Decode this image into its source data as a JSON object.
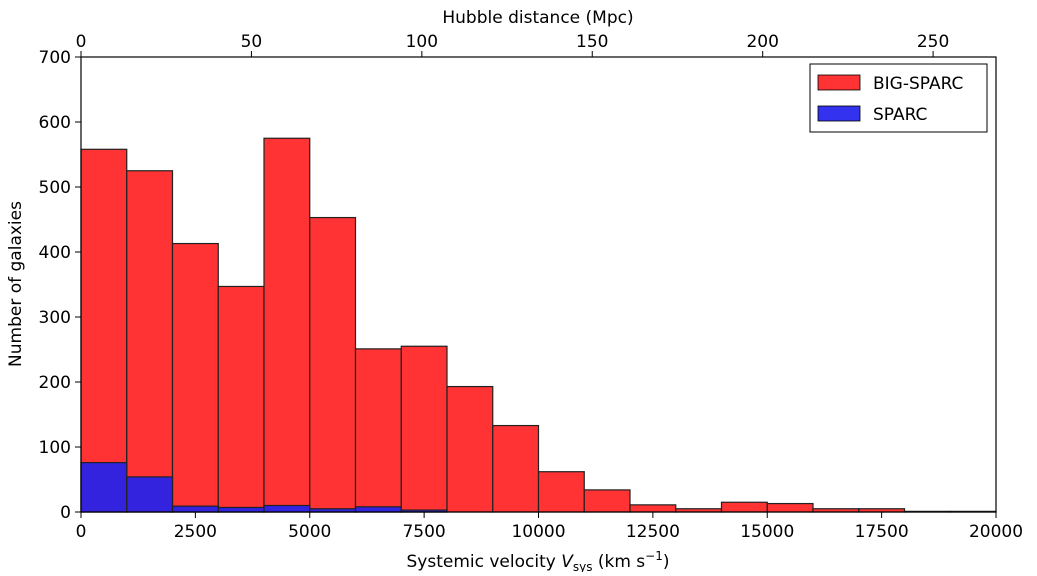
{
  "chart_data": {
    "type": "bar",
    "xlabel_prefix": "Systemic velocity ",
    "xlabel_var": "V",
    "xlabel_sub": "sys",
    "xlabel_units": " (km s",
    "xlabel_exp": "−1",
    "xlabel_close": ")",
    "ylabel": "Number of galaxies",
    "top_xlabel": "Hubble distance (Mpc)",
    "xlim": [
      0,
      20000
    ],
    "ylim": [
      0,
      700
    ],
    "bin_width": 1000,
    "bin_starts": [
      0,
      1000,
      2000,
      3000,
      4000,
      5000,
      6000,
      7000,
      8000,
      9000,
      10000,
      11000,
      12000,
      13000,
      14000,
      15000,
      16000,
      17000,
      18000,
      19000
    ],
    "series": [
      {
        "name": "BIG-SPARC",
        "color": "#ff2222",
        "values": [
          558,
          525,
          413,
          347,
          575,
          453,
          251,
          255,
          193,
          133,
          62,
          34,
          11,
          5,
          15,
          13,
          5,
          5,
          1,
          1
        ]
      },
      {
        "name": "SPARC",
        "color": "#2222ee",
        "values": [
          76,
          54,
          9,
          7,
          10,
          5,
          8,
          3,
          0,
          0,
          0,
          0,
          0,
          0,
          0,
          0,
          0,
          0,
          0,
          0
        ]
      }
    ],
    "x_ticks": [
      "0",
      "2500",
      "5000",
      "7500",
      "10000",
      "12500",
      "15000",
      "17500",
      "20000"
    ],
    "x_tick_values": [
      0,
      2500,
      5000,
      7500,
      10000,
      12500,
      15000,
      17500,
      20000
    ],
    "y_ticks": [
      "0",
      "100",
      "200",
      "300",
      "400",
      "500",
      "600",
      "700"
    ],
    "y_tick_values": [
      0,
      100,
      200,
      300,
      400,
      500,
      600,
      700
    ],
    "top_ticks": [
      "0",
      "50",
      "100",
      "150",
      "200",
      "250"
    ],
    "top_tick_values_mpc": [
      0,
      50,
      100,
      150,
      200,
      250
    ],
    "hubble_constant": 74.5,
    "legend_position": "top-right",
    "grid": false
  }
}
